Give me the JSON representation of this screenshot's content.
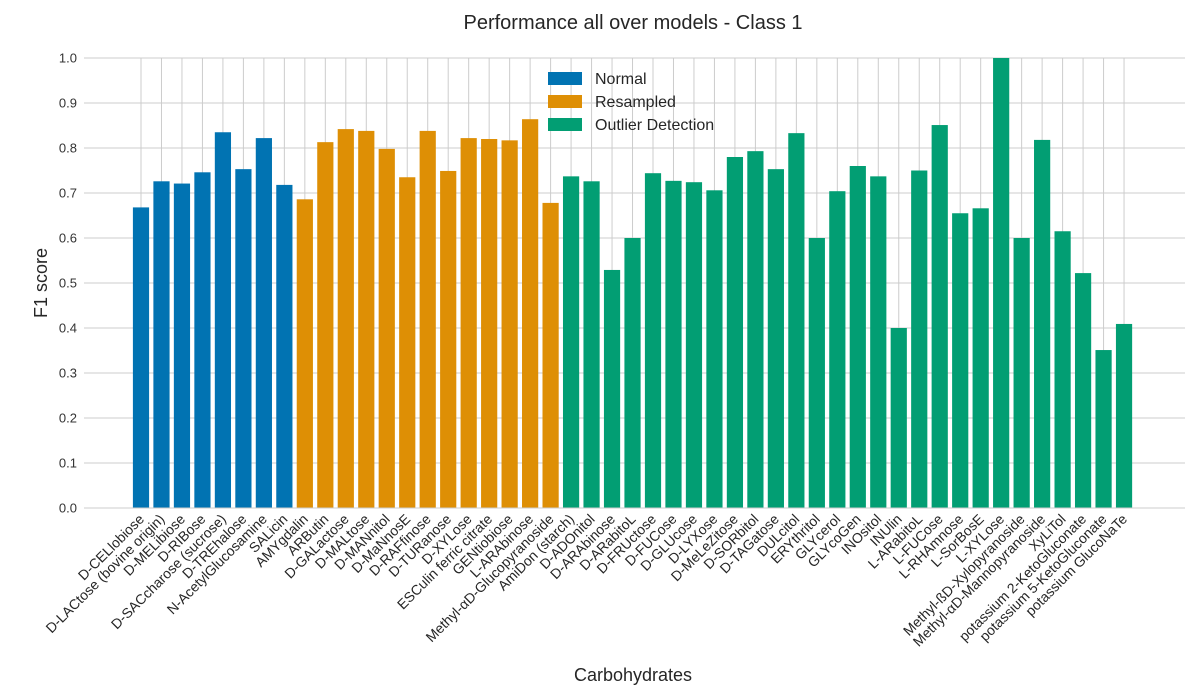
{
  "chart_data": {
    "type": "bar",
    "title": "Performance all over models - Class 1",
    "xlabel": "Carbohydrates",
    "ylabel": "F1 score",
    "ylim": [
      0,
      1.0
    ],
    "yticks": [
      "0.0",
      "0.1",
      "0.2",
      "0.3",
      "0.4",
      "0.5",
      "0.6",
      "0.7",
      "0.8",
      "0.9",
      "1.0"
    ],
    "grid": true,
    "legend_position": "top-center",
    "categories": [
      "D-CELlobiose",
      "D-LACtose (bovine origin)",
      "D-MELibiose",
      "D-RIBose",
      "D-SACcharose (sucrose)",
      "D-TREhalose",
      "N-AcetylGlucosamine",
      "SALicin",
      "AMYgdalin",
      "ARButin",
      "D-GALactose",
      "D-MALtose",
      "D-MANnitol",
      "D-MaNnosE",
      "D-RAFfinose",
      "D-TURanose",
      "D-XYLose",
      "ESCulin ferric citrate",
      "GENtiobiose",
      "L-ARAbinose",
      "Methyl-αD-Glucopyranoside",
      "AmiDon (starch)",
      "D-ADOnitol",
      "D-ARAbinose",
      "D-ARabitoL",
      "D-FRUctose",
      "D-FUCose",
      "D-GLUcose",
      "D-LYXose",
      "D-MeLeZitose",
      "D-SORbitol",
      "D-TAGatose",
      "DULcitol",
      "ERYthritol",
      "GLYcerol",
      "GLYcoGen",
      "INOsitol",
      "INUlin",
      "L-ARabitoL",
      "L-FUCose",
      "L-RHAmnose",
      "L-SorBosE",
      "L-XYLose",
      "Methyl-ßD-Xylopyranoside",
      "Methyl-αD-Mannopyranoside",
      "XyLiTol",
      "potassium 2-KetoGluconate",
      "potassium 5-KetoGluconate",
      "potassium GlucoNaTe"
    ],
    "series": [
      {
        "name": "Normal",
        "color": "#0173b2",
        "values": [
          0.668,
          0.726,
          0.721,
          0.746,
          0.835,
          0.753,
          0.822,
          0.718,
          null,
          null,
          null,
          null,
          null,
          null,
          null,
          null,
          null,
          null,
          null,
          null,
          null,
          null,
          null,
          null,
          null,
          null,
          null,
          null,
          null,
          null,
          null,
          null,
          null,
          null,
          null,
          null,
          null,
          null,
          null,
          null,
          null,
          null,
          null,
          null,
          null,
          null,
          null,
          null,
          null
        ]
      },
      {
        "name": "Resampled",
        "color": "#de8f05",
        "values": [
          null,
          null,
          null,
          null,
          null,
          null,
          null,
          null,
          0.686,
          0.813,
          0.842,
          0.838,
          0.798,
          0.735,
          0.838,
          0.749,
          0.822,
          0.82,
          0.817,
          0.864,
          0.678,
          null,
          null,
          null,
          null,
          null,
          null,
          null,
          null,
          null,
          null,
          null,
          null,
          null,
          null,
          null,
          null,
          null,
          null,
          null,
          null,
          null,
          null,
          null,
          null,
          null,
          null,
          null,
          null
        ]
      },
      {
        "name": "Outlier Detection",
        "color": "#029e73",
        "values": [
          null,
          null,
          null,
          null,
          null,
          null,
          null,
          null,
          null,
          null,
          null,
          null,
          null,
          null,
          null,
          null,
          null,
          null,
          null,
          null,
          null,
          0.737,
          0.726,
          0.529,
          0.6,
          0.744,
          0.727,
          0.724,
          0.706,
          0.78,
          0.793,
          0.753,
          0.833,
          0.6,
          0.704,
          0.76,
          0.737,
          0.4,
          0.75,
          0.851,
          0.655,
          0.666,
          1.0,
          0.6,
          0.818,
          0.615,
          0.522,
          0.351,
          0.409
        ]
      }
    ]
  }
}
